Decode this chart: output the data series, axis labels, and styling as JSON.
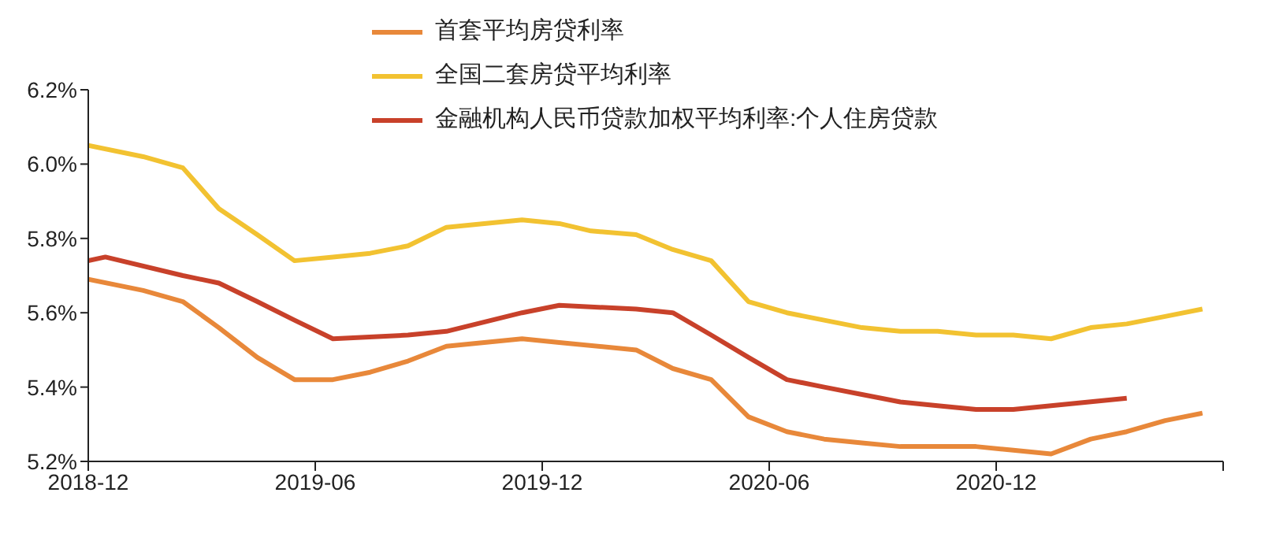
{
  "chart_data": {
    "type": "line",
    "legend": "top",
    "grid": false,
    "xlim": [
      "2018-12",
      "2021-06"
    ],
    "xticks": [
      "2018-12",
      "2019-06",
      "2019-12",
      "2020-06",
      "2020-12",
      {
        "value": "2021-06",
        "label": null
      }
    ],
    "ylim": [
      5.2,
      6.2
    ],
    "yticks": [
      {
        "value": 5.2,
        "label": "5.2%"
      },
      {
        "value": 5.4,
        "label": "5.4%"
      },
      {
        "value": 5.6,
        "label": "5.6%"
      },
      {
        "value": 5.8,
        "label": "5.8%"
      },
      {
        "value": 6.0,
        "label": "6.0%"
      },
      {
        "value": 6.2,
        "label": "6.2%"
      }
    ],
    "series": [
      {
        "name": "首套平均房贷利率",
        "color": "#e8883a",
        "x": [
          "2018-12-01",
          "2019-01-15",
          "2019-02-15",
          "2019-03-15",
          "2019-04-15",
          "2019-05-15",
          "2019-06-15",
          "2019-07-15",
          "2019-08-15",
          "2019-09-15",
          "2019-11-15",
          "2019-12-15",
          "2020-02-15",
          "2020-03-15",
          "2020-04-15",
          "2020-05-15",
          "2020-06-15",
          "2020-07-15",
          "2020-08-15",
          "2020-09-15",
          "2020-10-15",
          "2020-11-15",
          "2020-12-15",
          "2021-01-15",
          "2021-02-15",
          "2021-03-15",
          "2021-04-15",
          "2021-05-15"
        ],
        "values": [
          5.69,
          5.66,
          5.63,
          5.56,
          5.48,
          5.42,
          5.42,
          5.44,
          5.47,
          5.51,
          5.53,
          5.52,
          5.5,
          5.45,
          5.42,
          5.32,
          5.28,
          5.26,
          5.25,
          5.24,
          5.24,
          5.24,
          5.23,
          5.22,
          5.26,
          5.28,
          5.31,
          5.33
        ]
      },
      {
        "name": "全国二套房贷平均利率",
        "color": "#f2c231",
        "x": [
          "2018-12-01",
          "2019-01-15",
          "2019-02-15",
          "2019-03-15",
          "2019-04-15",
          "2019-05-15",
          "2019-06-15",
          "2019-07-15",
          "2019-08-15",
          "2019-09-15",
          "2019-11-15",
          "2019-12-15",
          "2020-01-10",
          "2020-02-15",
          "2020-03-15",
          "2020-04-15",
          "2020-05-15",
          "2020-06-15",
          "2020-07-15",
          "2020-08-15",
          "2020-09-15",
          "2020-10-15",
          "2020-11-15",
          "2020-12-15",
          "2021-01-15",
          "2021-02-15",
          "2021-03-15",
          "2021-04-15",
          "2021-05-15"
        ],
        "values": [
          6.05,
          6.02,
          5.99,
          5.88,
          5.81,
          5.74,
          5.75,
          5.76,
          5.78,
          5.83,
          5.85,
          5.84,
          5.82,
          5.81,
          5.77,
          5.74,
          5.63,
          5.6,
          5.58,
          5.56,
          5.55,
          5.55,
          5.54,
          5.54,
          5.53,
          5.56,
          5.57,
          5.59,
          5.61
        ]
      },
      {
        "name": "金融机构人民币贷款加权平均利率:个人住房贷款",
        "color": "#c8412a",
        "x": [
          "2018-12-01",
          "2018-12-15",
          "2019-02-15",
          "2019-03-15",
          "2019-04-15",
          "2019-05-15",
          "2019-06-15",
          "2019-08-15",
          "2019-09-15",
          "2019-11-15",
          "2019-12-15",
          "2020-02-15",
          "2020-03-15",
          "2020-04-15",
          "2020-05-15",
          "2020-06-15",
          "2020-07-15",
          "2020-08-15",
          "2020-09-15",
          "2020-10-15",
          "2020-11-15",
          "2020-12-15",
          "2021-01-15",
          "2021-03-15"
        ],
        "values": [
          5.74,
          5.75,
          5.7,
          5.68,
          5.63,
          5.58,
          5.53,
          5.54,
          5.55,
          5.6,
          5.62,
          5.61,
          5.6,
          5.54,
          5.48,
          5.42,
          5.4,
          5.38,
          5.36,
          5.35,
          5.34,
          5.34,
          5.35,
          5.37
        ]
      }
    ]
  }
}
